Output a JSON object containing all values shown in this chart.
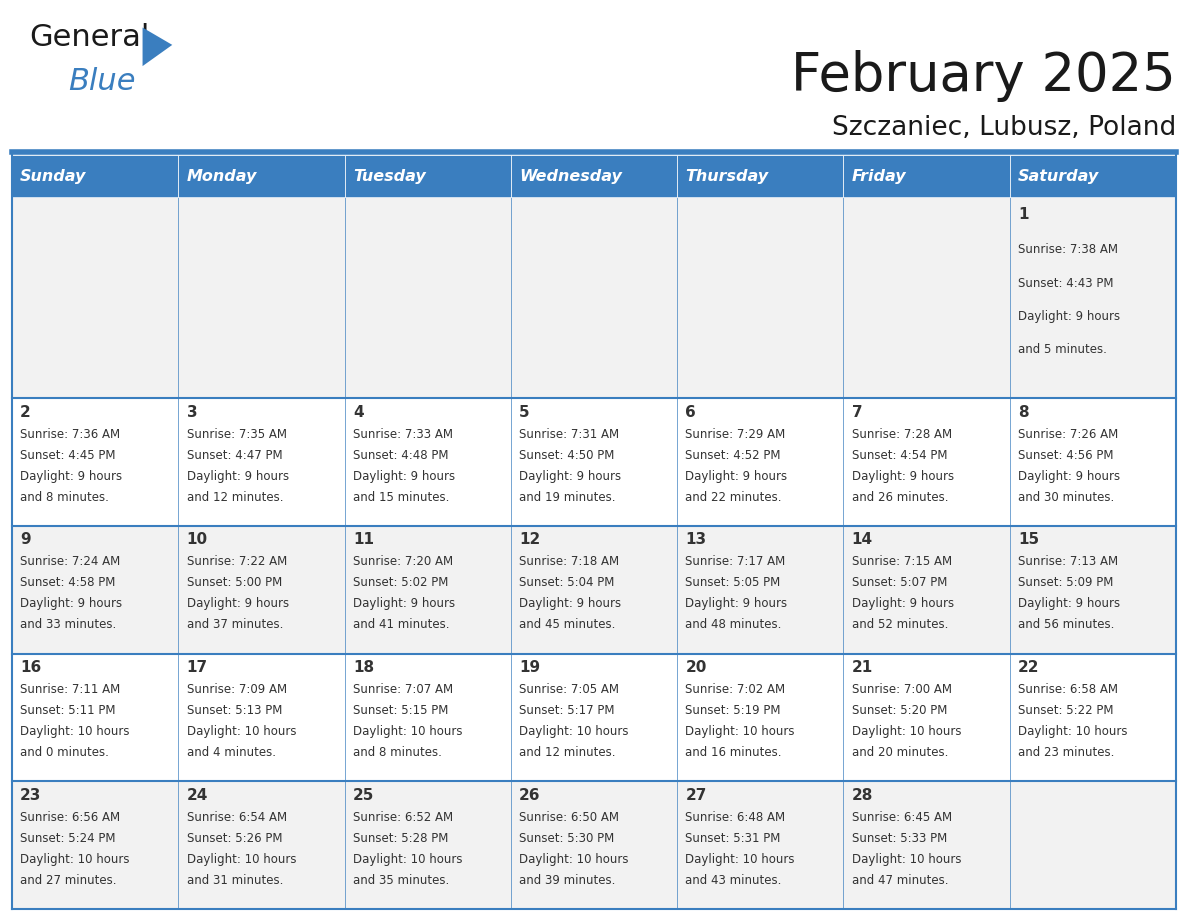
{
  "title": "February 2025",
  "subtitle": "Szczaniec, Lubusz, Poland",
  "header_bg": "#3a7ebf",
  "header_text_color": "#ffffff",
  "cell_bg_odd": "#f2f2f2",
  "cell_bg_even": "#ffffff",
  "border_color": "#3a7ebf",
  "sep_line_color": "#3a7ebf",
  "day_names": [
    "Sunday",
    "Monday",
    "Tuesday",
    "Wednesday",
    "Thursday",
    "Friday",
    "Saturday"
  ],
  "title_color": "#1a1a1a",
  "subtitle_color": "#1a1a1a",
  "text_color": "#333333",
  "days": [
    {
      "day": 1,
      "col": 6,
      "row": 0,
      "sunrise": "7:38 AM",
      "sunset": "4:43 PM",
      "daylight": "9 hours and 5 minutes."
    },
    {
      "day": 2,
      "col": 0,
      "row": 1,
      "sunrise": "7:36 AM",
      "sunset": "4:45 PM",
      "daylight": "9 hours and 8 minutes."
    },
    {
      "day": 3,
      "col": 1,
      "row": 1,
      "sunrise": "7:35 AM",
      "sunset": "4:47 PM",
      "daylight": "9 hours and 12 minutes."
    },
    {
      "day": 4,
      "col": 2,
      "row": 1,
      "sunrise": "7:33 AM",
      "sunset": "4:48 PM",
      "daylight": "9 hours and 15 minutes."
    },
    {
      "day": 5,
      "col": 3,
      "row": 1,
      "sunrise": "7:31 AM",
      "sunset": "4:50 PM",
      "daylight": "9 hours and 19 minutes."
    },
    {
      "day": 6,
      "col": 4,
      "row": 1,
      "sunrise": "7:29 AM",
      "sunset": "4:52 PM",
      "daylight": "9 hours and 22 minutes."
    },
    {
      "day": 7,
      "col": 5,
      "row": 1,
      "sunrise": "7:28 AM",
      "sunset": "4:54 PM",
      "daylight": "9 hours and 26 minutes."
    },
    {
      "day": 8,
      "col": 6,
      "row": 1,
      "sunrise": "7:26 AM",
      "sunset": "4:56 PM",
      "daylight": "9 hours and 30 minutes."
    },
    {
      "day": 9,
      "col": 0,
      "row": 2,
      "sunrise": "7:24 AM",
      "sunset": "4:58 PM",
      "daylight": "9 hours and 33 minutes."
    },
    {
      "day": 10,
      "col": 1,
      "row": 2,
      "sunrise": "7:22 AM",
      "sunset": "5:00 PM",
      "daylight": "9 hours and 37 minutes."
    },
    {
      "day": 11,
      "col": 2,
      "row": 2,
      "sunrise": "7:20 AM",
      "sunset": "5:02 PM",
      "daylight": "9 hours and 41 minutes."
    },
    {
      "day": 12,
      "col": 3,
      "row": 2,
      "sunrise": "7:18 AM",
      "sunset": "5:04 PM",
      "daylight": "9 hours and 45 minutes."
    },
    {
      "day": 13,
      "col": 4,
      "row": 2,
      "sunrise": "7:17 AM",
      "sunset": "5:05 PM",
      "daylight": "9 hours and 48 minutes."
    },
    {
      "day": 14,
      "col": 5,
      "row": 2,
      "sunrise": "7:15 AM",
      "sunset": "5:07 PM",
      "daylight": "9 hours and 52 minutes."
    },
    {
      "day": 15,
      "col": 6,
      "row": 2,
      "sunrise": "7:13 AM",
      "sunset": "5:09 PM",
      "daylight": "9 hours and 56 minutes."
    },
    {
      "day": 16,
      "col": 0,
      "row": 3,
      "sunrise": "7:11 AM",
      "sunset": "5:11 PM",
      "daylight": "10 hours and 0 minutes."
    },
    {
      "day": 17,
      "col": 1,
      "row": 3,
      "sunrise": "7:09 AM",
      "sunset": "5:13 PM",
      "daylight": "10 hours and 4 minutes."
    },
    {
      "day": 18,
      "col": 2,
      "row": 3,
      "sunrise": "7:07 AM",
      "sunset": "5:15 PM",
      "daylight": "10 hours and 8 minutes."
    },
    {
      "day": 19,
      "col": 3,
      "row": 3,
      "sunrise": "7:05 AM",
      "sunset": "5:17 PM",
      "daylight": "10 hours and 12 minutes."
    },
    {
      "day": 20,
      "col": 4,
      "row": 3,
      "sunrise": "7:02 AM",
      "sunset": "5:19 PM",
      "daylight": "10 hours and 16 minutes."
    },
    {
      "day": 21,
      "col": 5,
      "row": 3,
      "sunrise": "7:00 AM",
      "sunset": "5:20 PM",
      "daylight": "10 hours and 20 minutes."
    },
    {
      "day": 22,
      "col": 6,
      "row": 3,
      "sunrise": "6:58 AM",
      "sunset": "5:22 PM",
      "daylight": "10 hours and 23 minutes."
    },
    {
      "day": 23,
      "col": 0,
      "row": 4,
      "sunrise": "6:56 AM",
      "sunset": "5:24 PM",
      "daylight": "10 hours and 27 minutes."
    },
    {
      "day": 24,
      "col": 1,
      "row": 4,
      "sunrise": "6:54 AM",
      "sunset": "5:26 PM",
      "daylight": "10 hours and 31 minutes."
    },
    {
      "day": 25,
      "col": 2,
      "row": 4,
      "sunrise": "6:52 AM",
      "sunset": "5:28 PM",
      "daylight": "10 hours and 35 minutes."
    },
    {
      "day": 26,
      "col": 3,
      "row": 4,
      "sunrise": "6:50 AM",
      "sunset": "5:30 PM",
      "daylight": "10 hours and 39 minutes."
    },
    {
      "day": 27,
      "col": 4,
      "row": 4,
      "sunrise": "6:48 AM",
      "sunset": "5:31 PM",
      "daylight": "10 hours and 43 minutes."
    },
    {
      "day": 28,
      "col": 5,
      "row": 4,
      "sunrise": "6:45 AM",
      "sunset": "5:33 PM",
      "daylight": "10 hours and 47 minutes."
    }
  ],
  "num_rows": 5,
  "num_cols": 7,
  "logo_general_color": "#1a1a1a",
  "logo_blue_color": "#3a7ebf",
  "logo_triangle_color": "#3a7ebf"
}
